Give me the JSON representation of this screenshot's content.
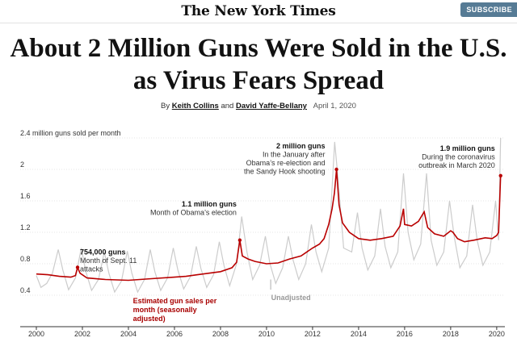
{
  "masthead": {
    "logo": "The New York Times",
    "subscribe": "SUBSCRIBE"
  },
  "article": {
    "headline": "About 2 Million Guns Were Sold in the U.S. as Virus Fears Spread",
    "by_label": "By",
    "author1": "Keith Collins",
    "and_label": "and",
    "author2": "David Yaffe-Bellany",
    "date": "April 1, 2020"
  },
  "colors": {
    "adjusted": "#b90000",
    "unadjusted": "#cccccc",
    "grid": "#e6e6e6"
  },
  "chart_data": {
    "type": "line",
    "title": "",
    "ylabel": "2.4 million guns sold per month",
    "xlim": [
      2000,
      2020.25
    ],
    "ylim": [
      0,
      2.4
    ],
    "yticks": [
      {
        "v": 2.4,
        "label": "2.4 million guns sold per month"
      },
      {
        "v": 2.0,
        "label": "2"
      },
      {
        "v": 1.6,
        "label": "1.6"
      },
      {
        "v": 1.2,
        "label": "1.2"
      },
      {
        "v": 0.8,
        "label": "0.8"
      },
      {
        "v": 0.4,
        "label": "0.4"
      }
    ],
    "xticks": [
      {
        "v": 2000,
        "label": "2000"
      },
      {
        "v": 2002,
        "label": "2002"
      },
      {
        "v": 2004,
        "label": "2004"
      },
      {
        "v": 2006,
        "label": "2006"
      },
      {
        "v": 2008,
        "label": "2008"
      },
      {
        "v": 2010,
        "label": "2010"
      },
      {
        "v": 2012,
        "label": "2012"
      },
      {
        "v": 2014,
        "label": "2014"
      },
      {
        "v": 2016,
        "label": "2016"
      },
      {
        "v": 2018,
        "label": "2018"
      },
      {
        "v": 2020,
        "label": "2020"
      }
    ],
    "series": [
      {
        "name": "Estimated gun sales per month (seasonally adjusted)",
        "name_lines": [
          "Estimated gun sales per",
          "month (seasonally",
          "adjusted)"
        ],
        "points": [
          [
            2000.0,
            0.67
          ],
          [
            2000.5,
            0.66
          ],
          [
            2001.0,
            0.64
          ],
          [
            2001.5,
            0.63
          ],
          [
            2001.7,
            0.65
          ],
          [
            2001.79,
            0.754
          ],
          [
            2001.9,
            0.68
          ],
          [
            2002.2,
            0.62
          ],
          [
            2003.0,
            0.6
          ],
          [
            2004.0,
            0.59
          ],
          [
            2004.5,
            0.6
          ],
          [
            2005.0,
            0.61
          ],
          [
            2006.0,
            0.63
          ],
          [
            2006.5,
            0.64
          ],
          [
            2007.0,
            0.66
          ],
          [
            2007.5,
            0.68
          ],
          [
            2008.0,
            0.7
          ],
          [
            2008.5,
            0.75
          ],
          [
            2008.7,
            0.82
          ],
          [
            2008.84,
            1.1
          ],
          [
            2008.95,
            0.9
          ],
          [
            2009.2,
            0.86
          ],
          [
            2009.5,
            0.83
          ],
          [
            2010.0,
            0.8
          ],
          [
            2010.5,
            0.81
          ],
          [
            2011.0,
            0.86
          ],
          [
            2011.5,
            0.9
          ],
          [
            2012.0,
            1.0
          ],
          [
            2012.3,
            1.05
          ],
          [
            2012.5,
            1.12
          ],
          [
            2012.7,
            1.3
          ],
          [
            2012.85,
            1.5
          ],
          [
            2012.95,
            1.7
          ],
          [
            2013.04,
            2.0
          ],
          [
            2013.15,
            1.55
          ],
          [
            2013.3,
            1.32
          ],
          [
            2013.6,
            1.2
          ],
          [
            2014.0,
            1.12
          ],
          [
            2014.5,
            1.1
          ],
          [
            2015.0,
            1.12
          ],
          [
            2015.5,
            1.15
          ],
          [
            2015.8,
            1.28
          ],
          [
            2015.95,
            1.5
          ],
          [
            2016.0,
            1.3
          ],
          [
            2016.3,
            1.28
          ],
          [
            2016.6,
            1.34
          ],
          [
            2016.85,
            1.46
          ],
          [
            2017.0,
            1.26
          ],
          [
            2017.3,
            1.18
          ],
          [
            2017.7,
            1.15
          ],
          [
            2018.0,
            1.22
          ],
          [
            2018.1,
            1.2
          ],
          [
            2018.3,
            1.12
          ],
          [
            2018.6,
            1.08
          ],
          [
            2019.0,
            1.1
          ],
          [
            2019.5,
            1.13
          ],
          [
            2019.8,
            1.12
          ],
          [
            2020.0,
            1.16
          ],
          [
            2020.08,
            1.2
          ],
          [
            2020.17,
            1.92
          ]
        ]
      },
      {
        "name": "Unadjusted",
        "points": [
          [
            2000.0,
            0.65
          ],
          [
            2000.2,
            0.5
          ],
          [
            2000.45,
            0.55
          ],
          [
            2000.7,
            0.68
          ],
          [
            2000.95,
            0.98
          ],
          [
            2001.15,
            0.72
          ],
          [
            2001.4,
            0.47
          ],
          [
            2001.7,
            0.62
          ],
          [
            2001.95,
            1.0
          ],
          [
            2002.15,
            0.7
          ],
          [
            2002.4,
            0.46
          ],
          [
            2002.7,
            0.6
          ],
          [
            2002.95,
            0.95
          ],
          [
            2003.15,
            0.68
          ],
          [
            2003.4,
            0.44
          ],
          [
            2003.7,
            0.58
          ],
          [
            2003.95,
            0.96
          ],
          [
            2004.15,
            0.68
          ],
          [
            2004.4,
            0.44
          ],
          [
            2004.7,
            0.6
          ],
          [
            2004.95,
            0.98
          ],
          [
            2005.15,
            0.7
          ],
          [
            2005.4,
            0.46
          ],
          [
            2005.7,
            0.62
          ],
          [
            2005.95,
            1.0
          ],
          [
            2006.15,
            0.72
          ],
          [
            2006.4,
            0.48
          ],
          [
            2006.7,
            0.64
          ],
          [
            2006.95,
            1.02
          ],
          [
            2007.15,
            0.74
          ],
          [
            2007.4,
            0.5
          ],
          [
            2007.7,
            0.66
          ],
          [
            2007.95,
            1.08
          ],
          [
            2008.15,
            0.78
          ],
          [
            2008.4,
            0.52
          ],
          [
            2008.7,
            0.8
          ],
          [
            2008.92,
            1.4
          ],
          [
            2009.15,
            0.95
          ],
          [
            2009.4,
            0.6
          ],
          [
            2009.7,
            0.78
          ],
          [
            2009.95,
            1.15
          ],
          [
            2010.15,
            0.8
          ],
          [
            2010.4,
            0.55
          ],
          [
            2010.7,
            0.75
          ],
          [
            2010.95,
            1.15
          ],
          [
            2011.15,
            0.85
          ],
          [
            2011.4,
            0.6
          ],
          [
            2011.7,
            0.8
          ],
          [
            2011.95,
            1.3
          ],
          [
            2012.15,
            0.95
          ],
          [
            2012.4,
            0.7
          ],
          [
            2012.7,
            1.0
          ],
          [
            2012.96,
            2.35
          ],
          [
            2013.1,
            1.9
          ],
          [
            2013.35,
            1.0
          ],
          [
            2013.7,
            0.95
          ],
          [
            2013.95,
            1.45
          ],
          [
            2014.15,
            1.0
          ],
          [
            2014.4,
            0.72
          ],
          [
            2014.7,
            0.9
          ],
          [
            2014.95,
            1.5
          ],
          [
            2015.15,
            1.02
          ],
          [
            2015.4,
            0.75
          ],
          [
            2015.7,
            0.95
          ],
          [
            2015.95,
            1.95
          ],
          [
            2016.15,
            1.2
          ],
          [
            2016.4,
            0.85
          ],
          [
            2016.7,
            1.05
          ],
          [
            2016.95,
            1.95
          ],
          [
            2017.15,
            1.1
          ],
          [
            2017.4,
            0.78
          ],
          [
            2017.7,
            0.95
          ],
          [
            2017.95,
            1.6
          ],
          [
            2018.15,
            1.15
          ],
          [
            2018.4,
            0.75
          ],
          [
            2018.7,
            0.9
          ],
          [
            2018.95,
            1.55
          ],
          [
            2019.15,
            1.1
          ],
          [
            2019.4,
            0.78
          ],
          [
            2019.7,
            0.95
          ],
          [
            2019.95,
            1.6
          ],
          [
            2020.08,
            1.1
          ],
          [
            2020.17,
            2.4
          ]
        ]
      }
    ],
    "annotations": [
      {
        "id": "sept11",
        "x": 2001.79,
        "y": 0.754,
        "lines": [
          "754,000 guns",
          "Month of Sept. 11",
          "attacks"
        ],
        "align": "start"
      },
      {
        "id": "obama",
        "x": 2008.84,
        "y": 1.1,
        "lines": [
          "1.1 million guns",
          "Month of Obama’s election"
        ],
        "align": "end"
      },
      {
        "id": "sandyhook",
        "x": 2013.04,
        "y": 2.0,
        "lines": [
          "2 million guns",
          "In the January after",
          "Obama’s re-election and",
          "the Sandy Hook shooting"
        ],
        "align": "end"
      },
      {
        "id": "covid",
        "x": 2020.17,
        "y": 1.92,
        "lines": [
          "1.9 million guns",
          "During the coronavirus",
          "outbreak in March 2020"
        ],
        "align": "end"
      }
    ]
  }
}
